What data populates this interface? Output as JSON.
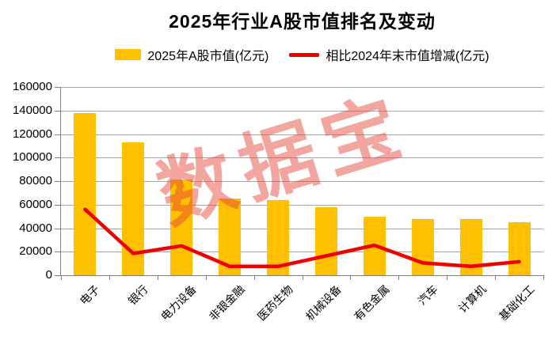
{
  "page": {
    "background": "#FFFFFF"
  },
  "watermark": {
    "text": "数据宝",
    "color": "#E7443A"
  },
  "chart_data": {
    "type": "bar",
    "title": "2025年行业A股市值排名及变动",
    "xlabel": "",
    "ylabel": "",
    "categories": [
      "电子",
      "银行",
      "电力设备",
      "非银金融",
      "医药生物",
      "机械设备",
      "有色金属",
      "汽车",
      "计算机",
      "基础化工"
    ],
    "series": [
      {
        "name": "2025年A股市值(亿元)",
        "type": "bar",
        "color": "#FFC000",
        "values": [
          138000,
          113000,
          81500,
          65500,
          64000,
          57500,
          50000,
          48000,
          48000,
          45000
        ]
      },
      {
        "name": "相比2024年末市值增减(亿元)",
        "type": "line",
        "color": "#EE0000",
        "values": [
          56000,
          18500,
          25000,
          7500,
          7500,
          16500,
          25500,
          10500,
          7500,
          11500
        ]
      }
    ],
    "ylim": [
      0,
      160000
    ],
    "yticks": [
      0,
      20000,
      40000,
      60000,
      80000,
      100000,
      120000,
      140000,
      160000
    ],
    "grid": true,
    "legend_position": "top",
    "axis_color": "#808080",
    "grid_color": "#A3A3A3",
    "text_color": "#000000"
  }
}
